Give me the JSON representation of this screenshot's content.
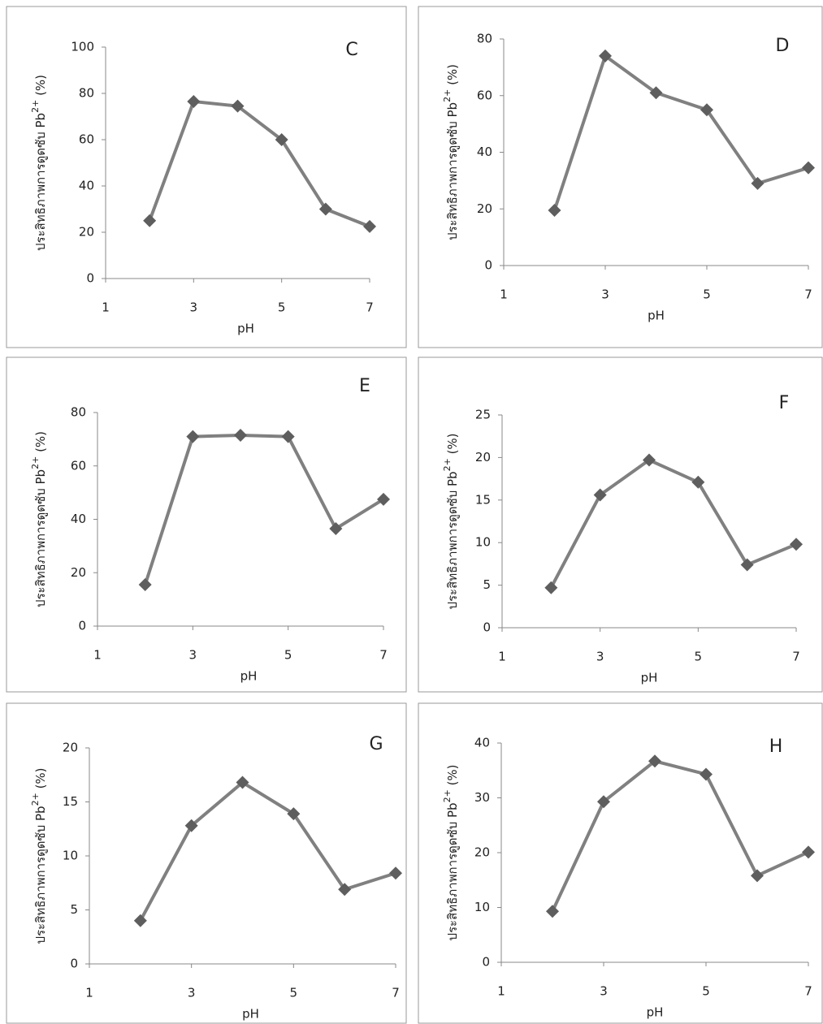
{
  "chart_data": [
    {
      "type": "line",
      "label": "C",
      "ylabel": [
        "ประสิทธิภาพการดูดซับ Pb",
        "2+",
        " (%)"
      ],
      "xlabel": "pH",
      "x": [
        2,
        3,
        4,
        5,
        6,
        7
      ],
      "values": [
        25,
        76.5,
        74.5,
        60,
        30,
        22.5
      ],
      "color": "#808080",
      "marker_color": "#5e5e5e",
      "xlim": [
        1,
        7
      ],
      "xticks": [
        1,
        3,
        5,
        7
      ],
      "ylim": [
        0,
        100
      ],
      "yticks": [
        0,
        20,
        40,
        60,
        80,
        100
      ]
    },
    {
      "type": "line",
      "label": "D",
      "ylabel": [
        "ประสิทธิภาพการดูดซับ Pb",
        "2+",
        " (%)"
      ],
      "xlabel": "pH",
      "x": [
        2,
        3,
        4,
        5,
        6,
        7
      ],
      "values": [
        19.5,
        74,
        61,
        55,
        29,
        34.5
      ],
      "color": "#808080",
      "marker_color": "#5e5e5e",
      "xlim": [
        1,
        7
      ],
      "xticks": [
        1,
        3,
        5,
        7
      ],
      "ylim": [
        0,
        80
      ],
      "yticks": [
        0,
        20,
        40,
        60,
        80
      ]
    },
    {
      "type": "line",
      "label": "E",
      "ylabel": [
        "ประสิทธิภาพการดูดซับ Pb",
        "2+",
        " (%)"
      ],
      "xlabel": "pH",
      "x": [
        2,
        3,
        4,
        5,
        6,
        7
      ],
      "values": [
        15.5,
        71,
        71.5,
        71,
        36.5,
        47.5
      ],
      "color": "#808080",
      "marker_color": "#5e5e5e",
      "xlim": [
        1,
        7
      ],
      "xticks": [
        1,
        3,
        5,
        7
      ],
      "ylim": [
        0,
        80
      ],
      "yticks": [
        0,
        20,
        40,
        60,
        80
      ]
    },
    {
      "type": "line",
      "label": "F",
      "ylabel": [
        "ประสิทธิภาพการดูดซับ Pb",
        "2+",
        " (%)"
      ],
      "xlabel": "pH",
      "x": [
        2,
        3,
        4,
        5,
        6,
        7
      ],
      "values": [
        4.7,
        15.6,
        19.7,
        17.1,
        7.4,
        9.8
      ],
      "color": "#808080",
      "marker_color": "#5e5e5e",
      "xlim": [
        1,
        7
      ],
      "xticks": [
        1,
        3,
        5,
        7
      ],
      "ylim": [
        0,
        25
      ],
      "yticks": [
        0,
        5,
        10,
        15,
        20,
        25
      ]
    },
    {
      "type": "line",
      "label": "G",
      "ylabel": [
        "ประสิทธิภาพการดูดซับ Pb",
        "2+",
        " (%)"
      ],
      "xlabel": "pH",
      "x": [
        2,
        3,
        4,
        5,
        6,
        7
      ],
      "values": [
        4,
        12.8,
        16.8,
        13.9,
        6.9,
        8.4
      ],
      "color": "#808080",
      "marker_color": "#5e5e5e",
      "xlim": [
        1,
        7
      ],
      "xticks": [
        1,
        3,
        5,
        7
      ],
      "ylim": [
        0,
        20
      ],
      "yticks": [
        0,
        5,
        10,
        15,
        20
      ]
    },
    {
      "type": "line",
      "label": "H",
      "ylabel": [
        "ประสิทธิภาพการดูดซับ Pb",
        "2+",
        " (%)"
      ],
      "xlabel": "pH",
      "x": [
        2,
        3,
        4,
        5,
        6,
        7
      ],
      "values": [
        9.3,
        29.3,
        36.7,
        34.3,
        15.8,
        20.1
      ],
      "color": "#808080",
      "marker_color": "#5e5e5e",
      "xlim": [
        1,
        7
      ],
      "xticks": [
        1,
        3,
        5,
        7
      ],
      "ylim": [
        0,
        40
      ],
      "yticks": [
        0,
        10,
        20,
        30,
        40
      ]
    }
  ]
}
